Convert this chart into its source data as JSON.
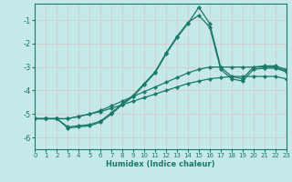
{
  "xlabel": "Humidex (Indice chaleur)",
  "xlim": [
    0,
    23
  ],
  "ylim": [
    -6.5,
    -0.3
  ],
  "yticks": [
    -6,
    -5,
    -4,
    -3,
    -2,
    -1
  ],
  "xticks": [
    0,
    1,
    2,
    3,
    4,
    5,
    6,
    7,
    8,
    9,
    10,
    11,
    12,
    13,
    14,
    15,
    16,
    17,
    18,
    19,
    20,
    21,
    22,
    23
  ],
  "background_color": "#c5e8e8",
  "grid_color": "#b0d0d0",
  "line_color": "#1a7a6a",
  "lines": [
    {
      "x": [
        0,
        1,
        2,
        3,
        4,
        5,
        6,
        7,
        8,
        9,
        10,
        11,
        12,
        13,
        14,
        15,
        16,
        17,
        18,
        19,
        20,
        21,
        22,
        23
      ],
      "y": [
        -5.2,
        -5.2,
        -5.2,
        -5.2,
        -5.1,
        -5.0,
        -4.9,
        -4.75,
        -4.6,
        -4.45,
        -4.3,
        -4.15,
        -4.0,
        -3.85,
        -3.7,
        -3.6,
        -3.5,
        -3.45,
        -3.4,
        -3.4,
        -3.4,
        -3.4,
        -3.4,
        -3.5
      ]
    },
    {
      "x": [
        0,
        1,
        2,
        3,
        4,
        5,
        6,
        7,
        8,
        9,
        10,
        11,
        12,
        13,
        14,
        15,
        16,
        17,
        18,
        19,
        20,
        21,
        22,
        23
      ],
      "y": [
        -5.2,
        -5.2,
        -5.2,
        -5.2,
        -5.1,
        -5.0,
        -4.85,
        -4.65,
        -4.45,
        -4.25,
        -4.05,
        -3.85,
        -3.65,
        -3.45,
        -3.25,
        -3.1,
        -3.0,
        -3.0,
        -3.0,
        -3.0,
        -3.0,
        -3.0,
        -3.0,
        -3.15
      ]
    },
    {
      "x": [
        0,
        1,
        2,
        3,
        4,
        5,
        6,
        7,
        8,
        9,
        10,
        11,
        12,
        13,
        14,
        15,
        16,
        17,
        18,
        19,
        20,
        21,
        22,
        23
      ],
      "y": [
        -5.2,
        -5.2,
        -5.2,
        -5.55,
        -5.5,
        -5.45,
        -5.3,
        -4.95,
        -4.55,
        -4.2,
        -3.7,
        -3.2,
        -2.4,
        -1.7,
        -1.1,
        -0.8,
        -1.3,
        -3.1,
        -3.5,
        -3.6,
        -3.1,
        -3.05,
        -3.05,
        -3.2
      ]
    },
    {
      "x": [
        0,
        1,
        2,
        3,
        4,
        5,
        6,
        7,
        8,
        9,
        10,
        11,
        12,
        13,
        14,
        15,
        16,
        17,
        18,
        19,
        20,
        21,
        22,
        23
      ],
      "y": [
        -5.2,
        -5.2,
        -5.2,
        -5.6,
        -5.55,
        -5.5,
        -5.35,
        -5.0,
        -4.6,
        -4.25,
        -3.75,
        -3.25,
        -2.45,
        -1.75,
        -1.15,
        -0.45,
        -1.15,
        -3.0,
        -3.4,
        -3.5,
        -3.0,
        -2.95,
        -2.95,
        -3.1
      ]
    }
  ]
}
